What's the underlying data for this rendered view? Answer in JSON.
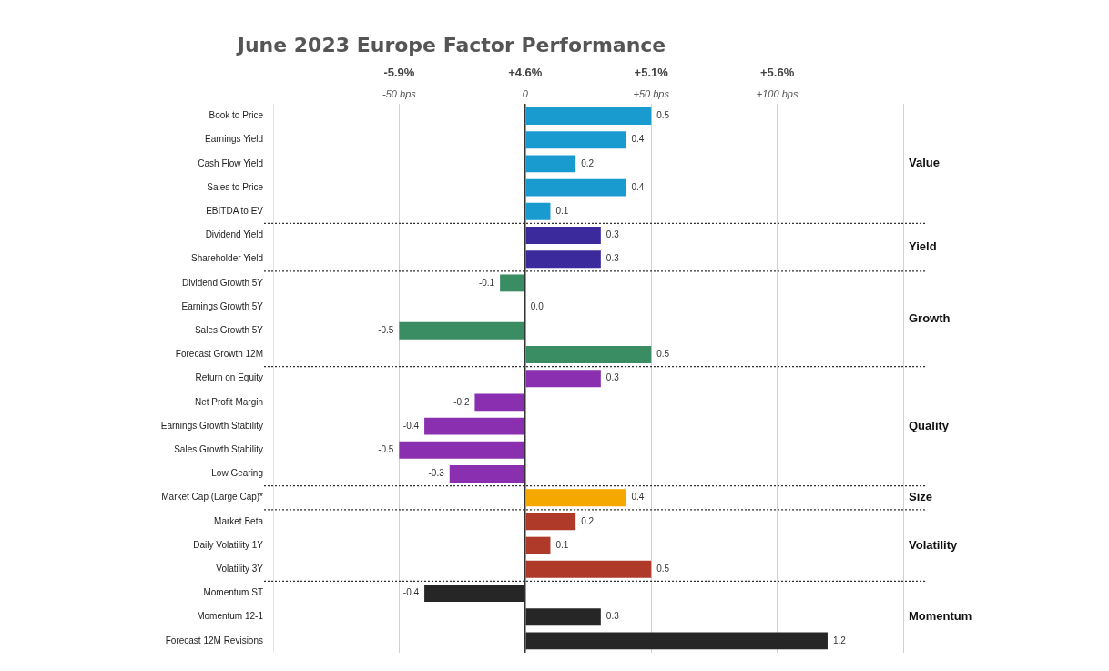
{
  "chart_data": {
    "type": "bar",
    "orientation": "horizontal",
    "title": "June 2023 Europe Factor Performance",
    "categories": [
      "Book to Price",
      "Earnings Yield",
      "Cash Flow Yield",
      "Sales to Price",
      "EBITDA to EV",
      "Dividend Yield",
      "Shareholder Yield",
      "Dividend Growth 5Y",
      "Earnings Growth 5Y",
      "Sales Growth 5Y",
      "Forecast Growth 12M",
      "Return on Equity",
      "Net Profit Margin",
      "Earnings Growth Stability",
      "Sales Growth Stability",
      "Low Gearing",
      "Market Cap (Large Cap)*",
      "Market Beta",
      "Daily Volatility 1Y",
      "Volatility 3Y",
      "Momentum ST",
      "Momentum 12-1",
      "Forecast 12M Revisions"
    ],
    "values": [
      0.5,
      0.4,
      0.2,
      0.4,
      0.1,
      0.3,
      0.3,
      -0.1,
      0.0,
      -0.5,
      0.5,
      0.3,
      -0.2,
      -0.4,
      -0.5,
      -0.3,
      0.4,
      0.2,
      0.1,
      0.5,
      -0.4,
      0.3,
      1.2
    ],
    "value_labels": [
      "0.5",
      "0.4",
      "0.2",
      "0.4",
      "0.1",
      "0.3",
      "0.3",
      "-0.1",
      "0.0",
      "-0.5",
      "0.5",
      "0.3",
      "-0.2",
      "-0.4",
      "-0.5",
      "-0.3",
      "0.4",
      "0.2",
      "0.1",
      "0.5",
      "-0.4",
      "0.3",
      "1.2"
    ],
    "colors": [
      "#1a9bd0",
      "#1a9bd0",
      "#1a9bd0",
      "#1a9bd0",
      "#1a9bd0",
      "#3b2a9c",
      "#3b2a9c",
      "#3a8c62",
      "#3a8c62",
      "#3a8c62",
      "#3a8c62",
      "#8a2fb0",
      "#8a2fb0",
      "#8a2fb0",
      "#8a2fb0",
      "#8a2fb0",
      "#f5a800",
      "#b03a2a",
      "#b03a2a",
      "#b03a2a",
      "#262626",
      "#262626",
      "#262626"
    ],
    "xlim": [
      -1.0,
      1.5
    ],
    "xticks": [
      {
        "value": -0.5,
        "label": null
      },
      {
        "value": 0,
        "label": null
      },
      {
        "value": 0.5,
        "label": null
      },
      {
        "value": 1.0,
        "label": null
      },
      {
        "value": 1.5,
        "label": null
      }
    ],
    "x2lim": [
      -100,
      150
    ],
    "x2ticks": [
      {
        "value": -50,
        "label": "-50 bps"
      },
      0,
      {
        "value": 50,
        "label": "+50 bps"
      },
      {
        "value": 100,
        "label": "+100 bps"
      }
    ],
    "grid": "x",
    "legend": false,
    "annotations": [
      "Value",
      "Yield",
      "Growth",
      "Quality",
      "Size",
      "Volatility",
      "Momentum",
      "-5.9%",
      "+4.6%",
      "+5.1%",
      "+5.6%"
    ]
  }
}
